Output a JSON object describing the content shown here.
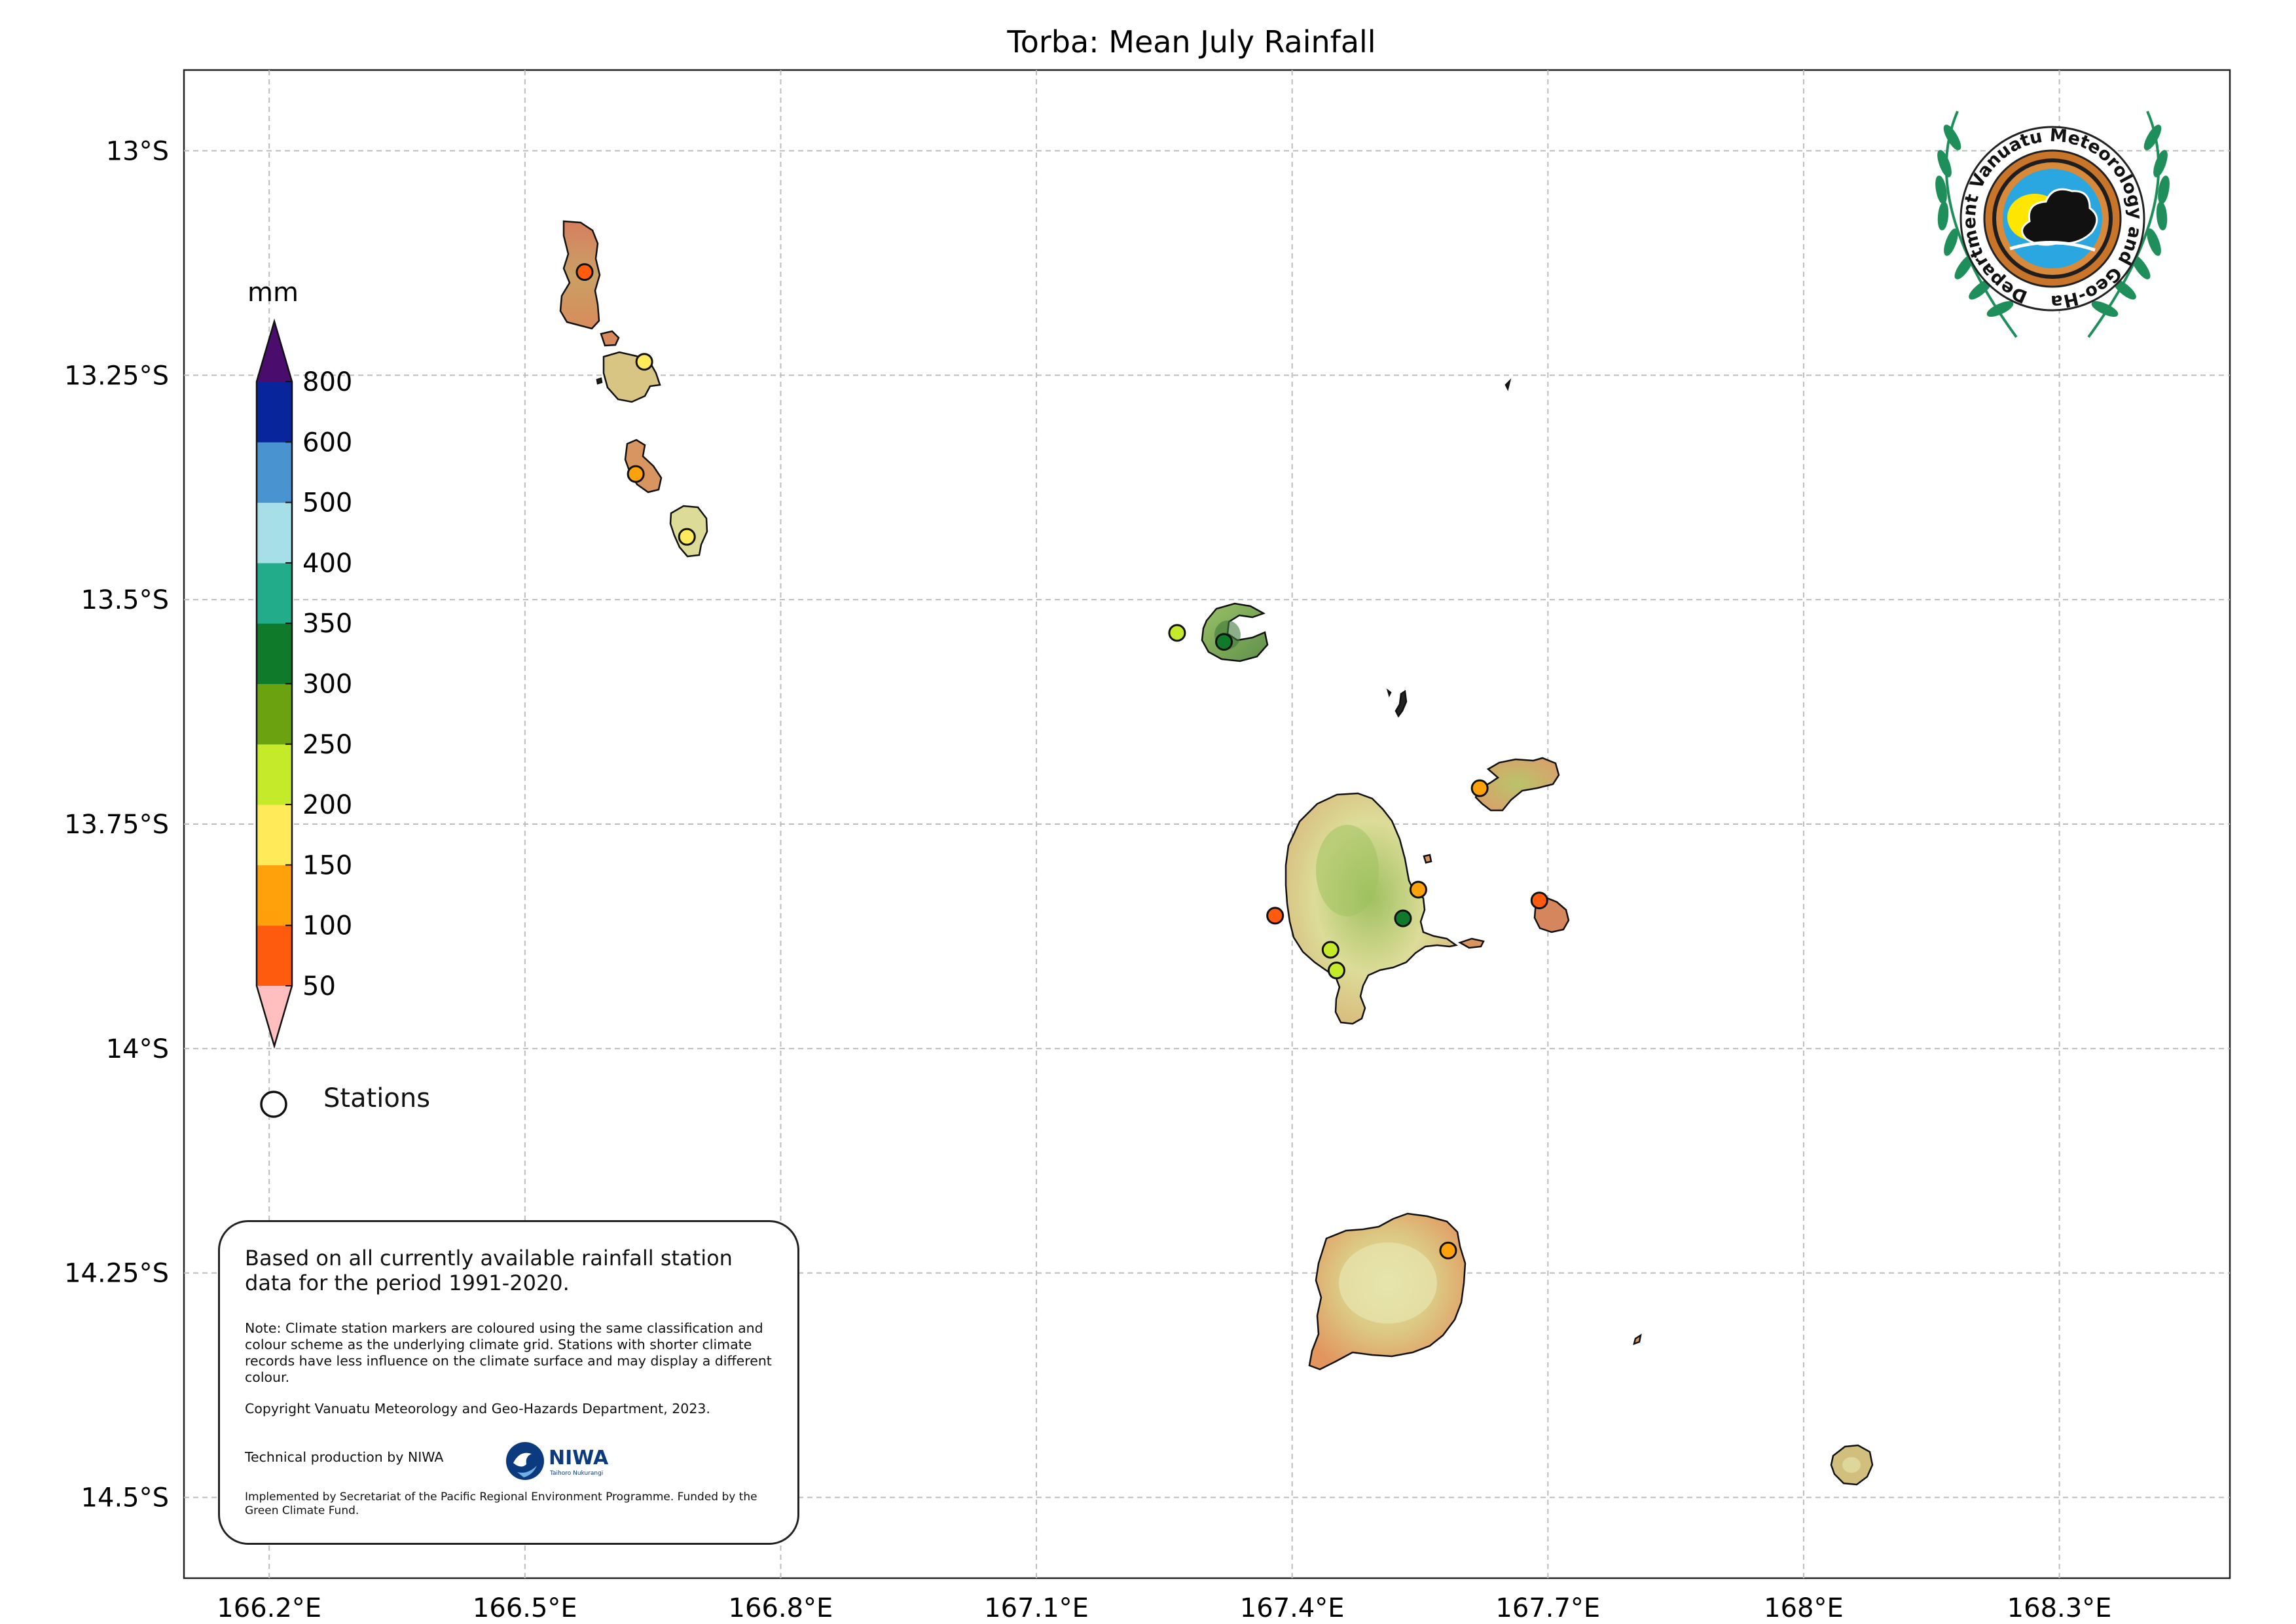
{
  "title": "Torba: Mean July Rainfall",
  "colorbar": {
    "unit_label": "mm",
    "tick_labels": [
      "50",
      "100",
      "150",
      "200",
      "250",
      "300",
      "350",
      "400",
      "500",
      "600",
      "800"
    ],
    "bins": [
      {
        "from": 50,
        "to": 100,
        "color": "#ff5b0f"
      },
      {
        "from": 100,
        "to": 150,
        "color": "#ffa10a"
      },
      {
        "from": 150,
        "to": 200,
        "color": "#ffea5a"
      },
      {
        "from": 200,
        "to": 250,
        "color": "#c4ea2a"
      },
      {
        "from": 250,
        "to": 300,
        "color": "#6aa30f"
      },
      {
        "from": 300,
        "to": 350,
        "color": "#0e7a2a"
      },
      {
        "from": 350,
        "to": 400,
        "color": "#22ac8a"
      },
      {
        "from": 400,
        "to": 500,
        "color": "#a7dfe9"
      },
      {
        "from": 500,
        "to": 600,
        "color": "#4993d1"
      },
      {
        "from": 600,
        "to": 800,
        "color": "#08259b"
      }
    ],
    "under_color": "#ffbfbf",
    "over_color": "#4a0d6e"
  },
  "legend": {
    "stations_label": "Stations"
  },
  "axes": {
    "x_ticks": [
      "166.2°E",
      "166.5°E",
      "166.8°E",
      "167.1°E",
      "167.4°E",
      "167.7°E",
      "168°E",
      "168.3°E"
    ],
    "y_ticks": [
      "13°S",
      "13.25°S",
      "13.5°S",
      "13.75°S",
      "14°S",
      "14.25°S",
      "14.5°S"
    ],
    "lon_range": [
      166.1,
      168.5
    ],
    "lat_range": [
      -14.59,
      -12.91
    ],
    "grid": true
  },
  "stations": [
    {
      "lon": 166.57,
      "lat": -13.135,
      "color": "#ff5b0f"
    },
    {
      "lon": 166.64,
      "lat": -13.235,
      "color": "#ffea5a"
    },
    {
      "lon": 166.63,
      "lat": -13.36,
      "color": "#ffa10a"
    },
    {
      "lon": 166.69,
      "lat": -13.43,
      "color": "#ffea5a"
    },
    {
      "lon": 167.265,
      "lat": -13.537,
      "color": "#c4ea2a"
    },
    {
      "lon": 167.32,
      "lat": -13.547,
      "color": "#0e7a2a"
    },
    {
      "lon": 167.62,
      "lat": -13.71,
      "color": "#ffa10a"
    },
    {
      "lon": 167.69,
      "lat": -13.835,
      "color": "#ff5b0f"
    },
    {
      "lon": 167.548,
      "lat": -13.823,
      "color": "#ffa10a"
    },
    {
      "lon": 167.53,
      "lat": -13.855,
      "color": "#0e7a2a"
    },
    {
      "lon": 167.38,
      "lat": -13.852,
      "color": "#ff5b0f"
    },
    {
      "lon": 167.445,
      "lat": -13.89,
      "color": "#c4ea2a"
    },
    {
      "lon": 167.452,
      "lat": -13.913,
      "color": "#c4ea2a"
    },
    {
      "lon": 167.583,
      "lat": -14.225,
      "color": "#ffa10a"
    }
  ],
  "info": {
    "main": "Based on all currently available rainfall station data for the period 1991-2020.",
    "note": "Note: Climate station markers are coloured using the same classification and colour scheme as the underlying climate grid. Stations with shorter climate records have less influence on the climate surface and may display a different colour.",
    "copyright": "Copyright Vanuatu Meteorology and Geo-Hazards Department, 2023.",
    "technical": "Technical production by NIWA",
    "niwa_logo_text": "NIWA",
    "niwa_logo_subtext": "Taihoro Nukurangi",
    "implemented": "Implemented by Secretariat of the Pacific Regional Environment Programme. Funded by the Green Climate Fund."
  },
  "logo": {
    "ring_text": "Department Vanuatu Meteorology and Geo-Hazards"
  }
}
